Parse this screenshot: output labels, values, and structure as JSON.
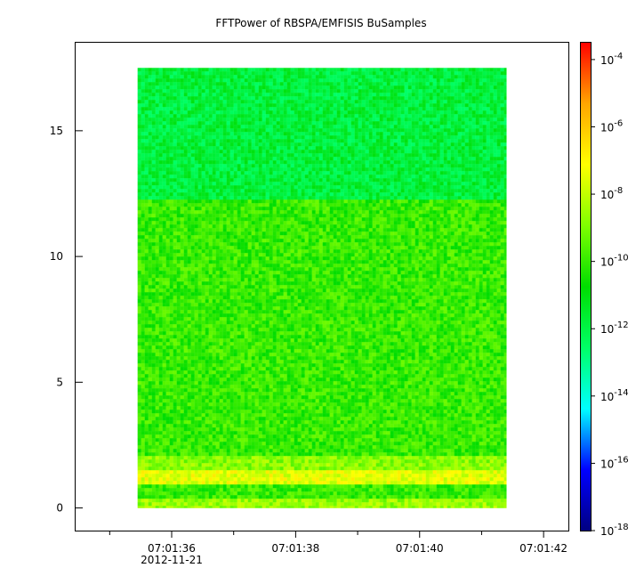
{
  "chart_data": {
    "type": "heatmap",
    "title": "FFTPower of RBSPA/EMFISIS  BuSamples",
    "xlabel": "",
    "ylabel": "",
    "x_ticks": [
      {
        "value": 36,
        "label": "07:01:36",
        "sublabel": "2012-11-21"
      },
      {
        "value": 38,
        "label": "07:01:38",
        "sublabel": ""
      },
      {
        "value": 40,
        "label": "07:01:40",
        "sublabel": ""
      },
      {
        "value": 42,
        "label": "07:01:42",
        "sublabel": ""
      }
    ],
    "x_minor_ticks": [
      35,
      37,
      39,
      41
    ],
    "xlim": [
      34.45,
      42.4
    ],
    "x_data_range": [
      35.45,
      41.4
    ],
    "y_ticks": [
      0,
      5,
      10,
      15
    ],
    "ylim": [
      -0.9,
      18.5
    ],
    "y_data_range": [
      0,
      17.5
    ],
    "colorbar": {
      "scale": "log",
      "range": [
        -18,
        -3.5
      ],
      "ticks": [
        {
          "value": -18,
          "base": "10",
          "exp": "-18"
        },
        {
          "value": -16,
          "base": "10",
          "exp": "-16"
        },
        {
          "value": -14,
          "base": "10",
          "exp": "-14"
        },
        {
          "value": -12,
          "base": "10",
          "exp": "-12"
        },
        {
          "value": -10,
          "base": "10",
          "exp": "-10"
        },
        {
          "value": -8,
          "base": "10",
          "exp": "-8"
        },
        {
          "value": -6,
          "base": "10",
          "exp": "-6"
        },
        {
          "value": -4,
          "base": "10",
          "exp": "-4"
        }
      ],
      "colors": [
        "#000080",
        "#0000ff",
        "#00ffff",
        "#00ff66",
        "#00dd00",
        "#80ff00",
        "#ffff00",
        "#ffa500",
        "#ff0000"
      ]
    },
    "bands": [
      {
        "y_from": 0,
        "y_to": 0.3,
        "log_power": -8.6
      },
      {
        "y_from": 0.3,
        "y_to": 1.0,
        "log_power": -10.0
      },
      {
        "y_from": 1.0,
        "y_to": 1.5,
        "log_power": -7.5
      },
      {
        "y_from": 1.5,
        "y_to": 2.0,
        "log_power": -8.8
      },
      {
        "y_from": 2.0,
        "y_to": 12.2,
        "log_power": -10.0
      },
      {
        "y_from": 12.2,
        "y_to": 17.5,
        "log_power": -11.8
      }
    ]
  }
}
